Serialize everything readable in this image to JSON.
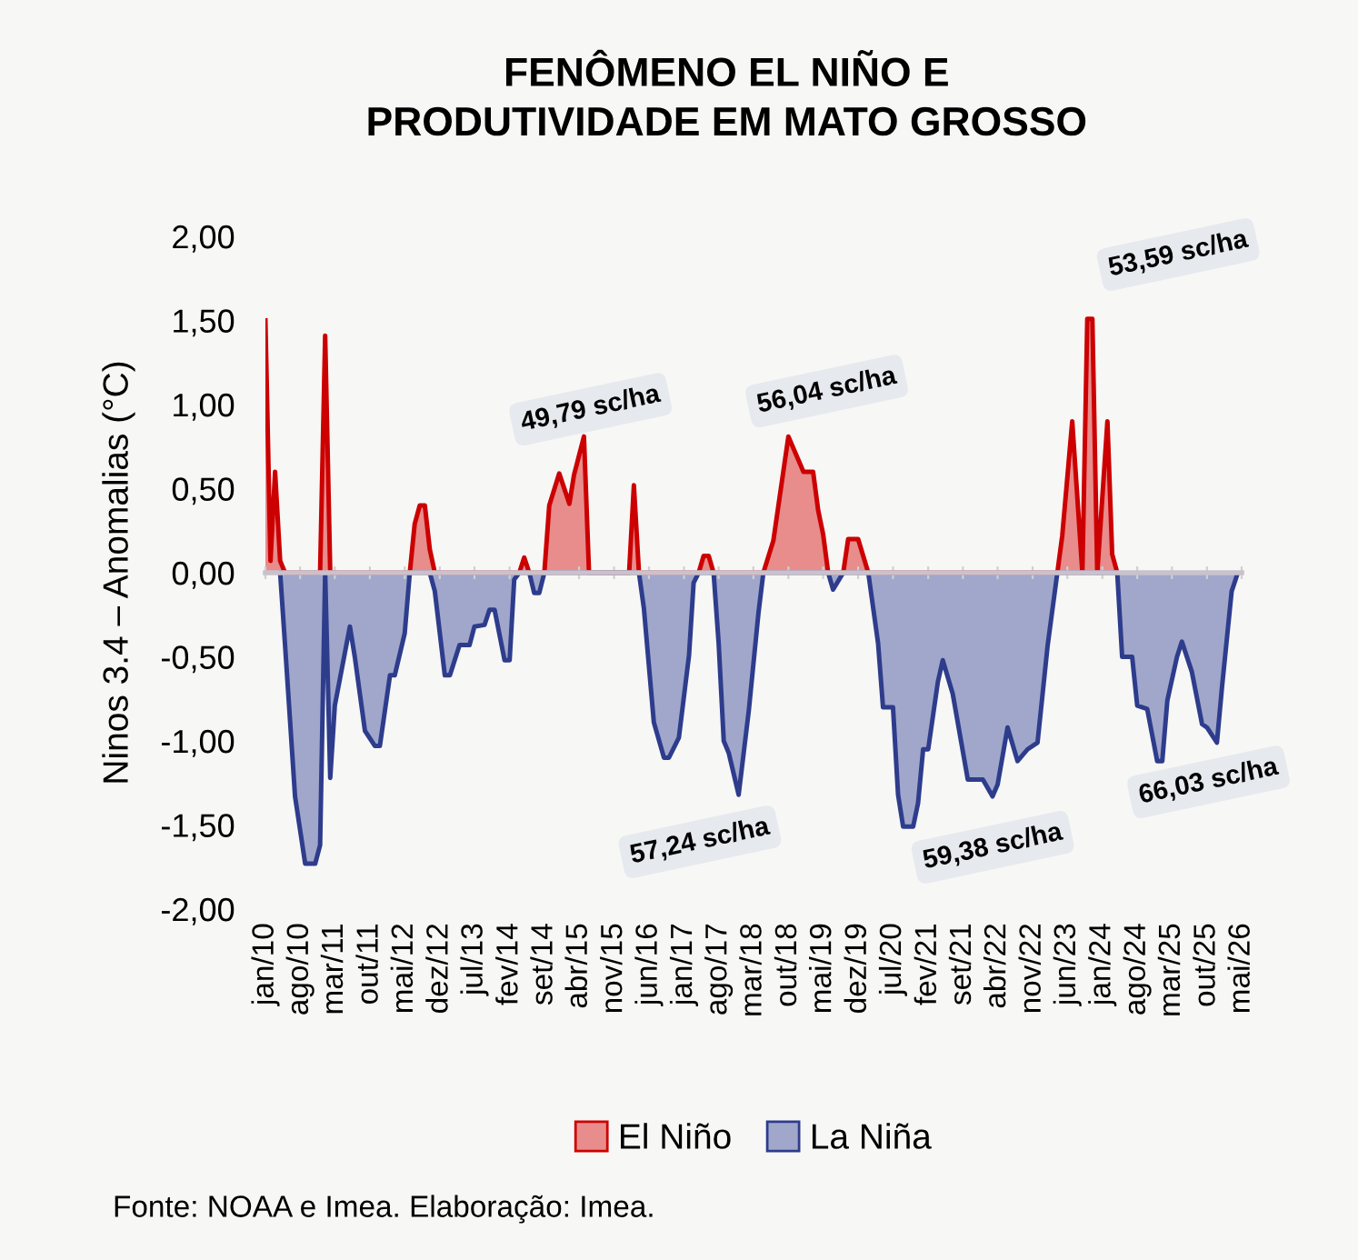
{
  "chart_data": {
    "type": "area",
    "title": "FENÔMENO EL NIÑO E\nPRODUTIVIDADE EM MATO GROSSO",
    "ylabel": "Ninos 3.4 – Anomalias (°C)",
    "series": [
      {
        "name": "El Niño",
        "color": "#cc0000",
        "x": [
          "2010-01",
          "2010-02",
          "2010-03",
          "2010-04",
          "2010-05",
          "2010-12",
          "2011-01",
          "2011-02",
          "2012-06",
          "2012-07",
          "2012-08",
          "2012-09",
          "2012-10",
          "2012-11",
          "2014-04",
          "2014-05",
          "2014-06",
          "2014-09",
          "2014-10",
          "2014-12",
          "2015-02",
          "2015-03",
          "2015-05",
          "2015-06",
          "2016-02",
          "2016-03",
          "2016-04",
          "2017-04",
          "2017-05",
          "2017-06",
          "2017-07",
          "2018-05",
          "2018-07",
          "2018-10",
          "2019-01",
          "2019-03",
          "2019-04",
          "2019-05",
          "2019-06",
          "2019-09",
          "2019-10",
          "2019-12",
          "2020-01",
          "2020-02",
          "2023-04",
          "2023-05",
          "2023-07",
          "2023-09",
          "2023-10",
          "2023-11",
          "2023-12",
          "2024-02",
          "2024-03",
          "2024-04"
        ],
        "values": [
          1.5,
          0.07,
          0.6,
          0.07,
          0,
          0,
          1.41,
          0,
          0,
          0.29,
          0.4,
          0.4,
          0.14,
          0,
          0,
          0.09,
          0,
          0,
          0.4,
          0.59,
          0.41,
          0.58,
          0.81,
          0,
          0,
          0.52,
          0,
          0,
          0.1,
          0.1,
          0,
          0,
          0.19,
          0.81,
          0.6,
          0.6,
          0.37,
          0.23,
          0,
          0,
          0.2,
          0.2,
          0.1,
          0,
          0,
          0.22,
          0.9,
          0,
          1.51,
          1.51,
          0,
          0.9,
          0.11,
          0
        ]
      },
      {
        "name": "La Niña",
        "color": "#2e3c8c",
        "x": [
          "2010-04",
          "2010-05",
          "2010-07",
          "2010-09",
          "2010-11",
          "2010-12",
          "2011-01",
          "2011-02",
          "2011-03",
          "2011-06",
          "2011-07",
          "2011-09",
          "2011-11",
          "2011-12",
          "2012-02",
          "2012-03",
          "2012-05",
          "2012-06",
          "2012-10",
          "2012-11",
          "2013-01",
          "2013-02",
          "2013-04",
          "2013-06",
          "2013-07",
          "2013-09",
          "2013-10",
          "2013-11",
          "2014-01",
          "2014-02",
          "2014-03",
          "2014-04",
          "2014-06",
          "2014-07",
          "2014-08",
          "2014-09",
          "2016-04",
          "2016-05",
          "2016-07",
          "2016-09",
          "2016-10",
          "2016-12",
          "2017-02",
          "2017-03",
          "2017-04",
          "2017-07",
          "2017-08",
          "2017-09",
          "2017-10",
          "2017-12",
          "2018-01",
          "2018-02",
          "2018-04",
          "2018-05",
          "2019-06",
          "2019-07",
          "2019-09",
          "2020-02",
          "2020-04",
          "2020-05",
          "2020-07",
          "2020-08",
          "2020-09",
          "2020-11",
          "2020-12",
          "2021-01",
          "2021-02",
          "2021-04",
          "2021-05",
          "2021-07",
          "2021-10",
          "2022-01",
          "2022-03",
          "2022-04",
          "2022-06",
          "2022-08",
          "2022-10",
          "2022-12",
          "2023-02",
          "2023-04",
          "2024-04",
          "2024-05",
          "2024-07",
          "2024-08",
          "2024-10",
          "2024-12",
          "2025-01",
          "2025-02",
          "2025-04",
          "2025-05",
          "2025-07",
          "2025-09",
          "2025-10",
          "2025-12",
          "2026-01",
          "2026-03",
          "2026-04"
        ],
        "values": [
          0,
          -0.43,
          -1.33,
          -1.73,
          -1.73,
          -1.62,
          0,
          -1.22,
          -0.79,
          -0.32,
          -0.5,
          -0.94,
          -1.03,
          -1.03,
          -0.61,
          -0.61,
          -0.36,
          0,
          0,
          -0.11,
          -0.61,
          -0.61,
          -0.43,
          -0.43,
          -0.32,
          -0.31,
          -0.22,
          -0.22,
          -0.52,
          -0.52,
          -0.04,
          0,
          0,
          -0.12,
          -0.12,
          0,
          0,
          -0.21,
          -0.89,
          -1.1,
          -1.1,
          -0.98,
          -0.49,
          -0.06,
          0,
          0,
          -0.42,
          -1.0,
          -1.07,
          -1.32,
          -1.07,
          -0.82,
          -0.24,
          0,
          0,
          -0.1,
          0,
          0,
          -0.42,
          -0.8,
          -0.8,
          -1.32,
          -1.51,
          -1.51,
          -1.37,
          -1.05,
          -1.05,
          -0.65,
          -0.52,
          -0.72,
          -1.23,
          -1.23,
          -1.33,
          -1.26,
          -0.92,
          -1.12,
          -1.05,
          -1.01,
          -0.43,
          0,
          0,
          -0.5,
          -0.5,
          -0.79,
          -0.81,
          -1.12,
          -1.12,
          -0.76,
          -0.5,
          -0.41,
          -0.59,
          -0.9,
          -0.92,
          -1.01,
          -0.68,
          -0.11,
          -0.02
        ]
      }
    ],
    "xlim": [
      "2010-01",
      "2026-05"
    ],
    "xticks": [
      {
        "value": "2010-01",
        "label": "jan/10"
      },
      {
        "value": "2010-08",
        "label": "ago/10"
      },
      {
        "value": "2011-03",
        "label": "mar/11"
      },
      {
        "value": "2011-10",
        "label": "out/11"
      },
      {
        "value": "2012-05",
        "label": "mai/12"
      },
      {
        "value": "2012-12",
        "label": "dez/12"
      },
      {
        "value": "2013-07",
        "label": "jul/13"
      },
      {
        "value": "2014-02",
        "label": "fev/14"
      },
      {
        "value": "2014-09",
        "label": "set/14"
      },
      {
        "value": "2015-04",
        "label": "abr/15"
      },
      {
        "value": "2015-11",
        "label": "nov/15"
      },
      {
        "value": "2016-06",
        "label": "jun/16"
      },
      {
        "value": "2017-01",
        "label": "jan/17"
      },
      {
        "value": "2017-08",
        "label": "ago/17"
      },
      {
        "value": "2018-03",
        "label": "mar/18"
      },
      {
        "value": "2018-10",
        "label": "out/18"
      },
      {
        "value": "2019-05",
        "label": "mai/19"
      },
      {
        "value": "2019-12",
        "label": "dez/19"
      },
      {
        "value": "2020-07",
        "label": "jul/20"
      },
      {
        "value": "2021-02",
        "label": "fev/21"
      },
      {
        "value": "2021-09",
        "label": "set/21"
      },
      {
        "value": "2022-04",
        "label": "abr/22"
      },
      {
        "value": "2022-11",
        "label": "nov/22"
      },
      {
        "value": "2023-06",
        "label": "jun/23"
      },
      {
        "value": "2024-01",
        "label": "jan/24"
      },
      {
        "value": "2024-08",
        "label": "ago/24"
      },
      {
        "value": "2025-03",
        "label": "mar/25"
      },
      {
        "value": "2025-10",
        "label": "out/25"
      },
      {
        "value": "2026-05",
        "label": "mai/26"
      }
    ],
    "ylim": [
      -2,
      2
    ],
    "yticks": [
      {
        "value": -2,
        "label": "-2,00"
      },
      {
        "value": -1.5,
        "label": "-1,50"
      },
      {
        "value": -1,
        "label": "-1,00"
      },
      {
        "value": -0.5,
        "label": "-0,50"
      },
      {
        "value": 0,
        "label": "0,00"
      },
      {
        "value": 0.5,
        "label": "0,50"
      },
      {
        "value": 1,
        "label": "1,00"
      },
      {
        "value": 1.5,
        "label": "1,50"
      },
      {
        "value": 2,
        "label": "2,00"
      }
    ],
    "legend": "bottom",
    "annotations": [
      "49,79 sc/ha",
      "56,04 sc/ha",
      "53,59 sc/ha",
      "57,24 sc/ha",
      "59,38 sc/ha",
      "66,03 sc/ha",
      "Fonte: NOAA e Imea. Elaboração: Imea."
    ]
  }
}
